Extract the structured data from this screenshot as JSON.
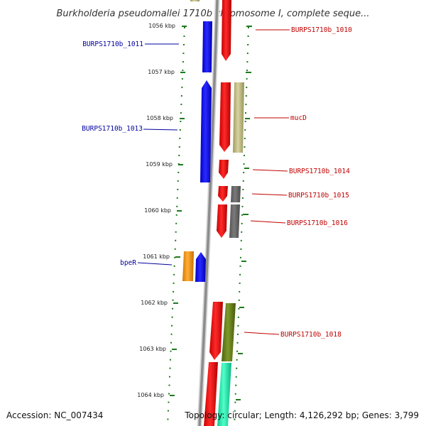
{
  "title": "Burkholderia pseudomallei 1710b chromosome I, complete seque...",
  "footer": {
    "accession": "Accession: NC_007434",
    "summary": "Topology: circular; Length: 4,126,292 bp; Genes: 3,799"
  },
  "colors": {
    "backbone": "#8c8c8c",
    "tick": "#1e7a1e",
    "forward_label": "#00009f",
    "reverse_label": "#c00000"
  },
  "chart_data": {
    "type": "genome-map",
    "scale": [
      {
        "value": 1056,
        "label": "1056 kbp"
      },
      {
        "value": 1057,
        "label": "1057 kbp"
      },
      {
        "value": 1058,
        "label": "1058 kbp"
      },
      {
        "value": 1059,
        "label": "1059 kbp"
      },
      {
        "value": 1060,
        "label": "1060 kbp"
      },
      {
        "value": 1061,
        "label": "1061 kbp"
      },
      {
        "value": 1062,
        "label": "1062 kbp"
      },
      {
        "value": 1063,
        "label": "1063 kbp"
      },
      {
        "value": 1064,
        "label": "1064 kbp"
      }
    ],
    "forward_labels": [
      {
        "text": "BURPS1710b_1011",
        "kbp": 1056.4
      },
      {
        "text": "BURPS1710b_1013",
        "kbp": 1058.2
      },
      {
        "text": "bpeR",
        "kbp": 1061.1
      }
    ],
    "reverse_labels": [
      {
        "text": "BURPS1710b_1010",
        "kbp": 1056.1
      },
      {
        "text": "mucD",
        "kbp": 1058.0
      },
      {
        "text": "BURPS1710b_1014",
        "kbp": 1059.15
      },
      {
        "text": "BURPS1710b_1015",
        "kbp": 1059.7
      },
      {
        "text": "BURPS1710b_1016",
        "kbp": 1060.3
      },
      {
        "text": "BURPS1710b_1018",
        "kbp": 1062.65
      }
    ]
  }
}
